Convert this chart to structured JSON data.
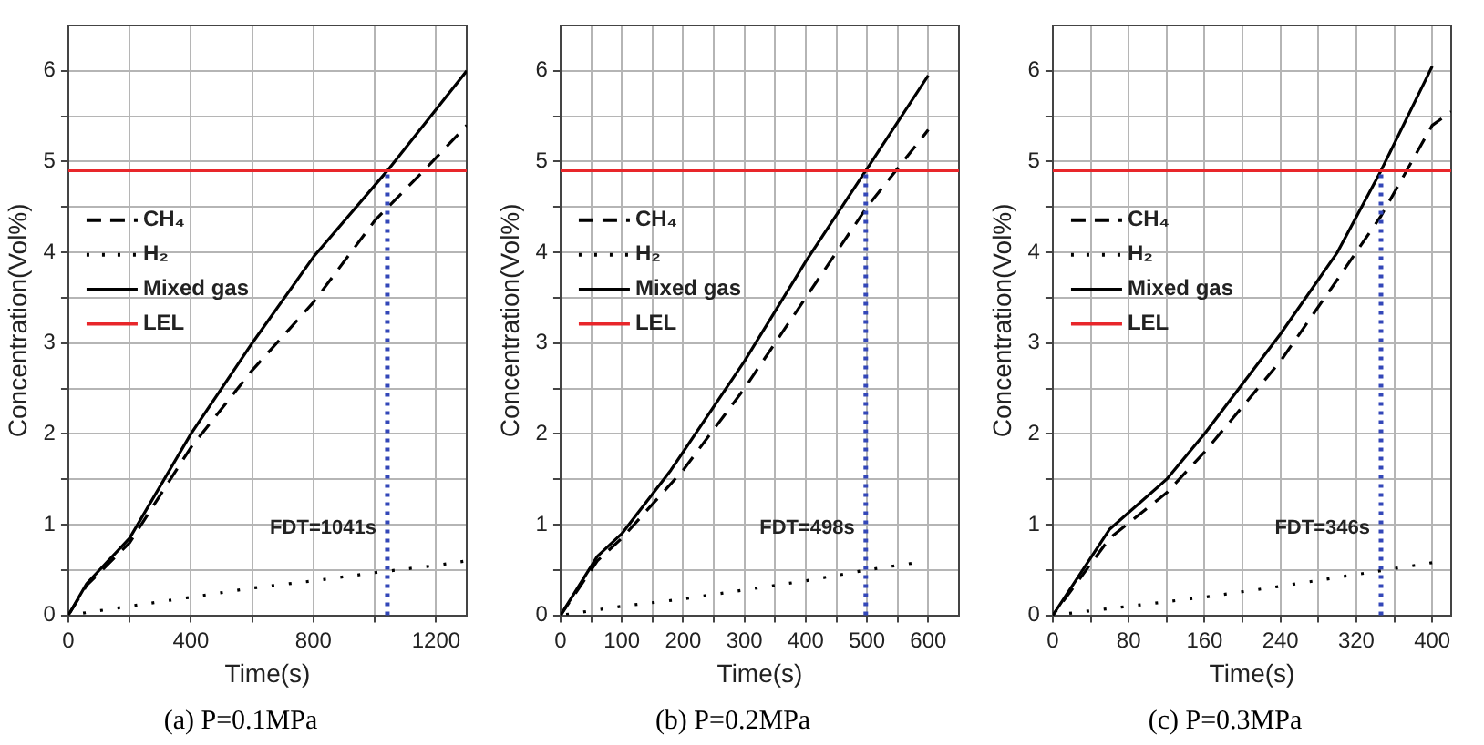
{
  "chart_data": [
    {
      "type": "line",
      "title": "(a) P=0.1MPa",
      "xlabel": "Time(s)",
      "ylabel": "Concentration(Vol%)",
      "xlim": [
        0,
        1300
      ],
      "ylim": [
        0,
        6.5
      ],
      "xticks": [
        0,
        {
          "value": 200,
          "label": null
        },
        400,
        {
          "value": 600,
          "label": null
        },
        800,
        {
          "value": 1000,
          "label": null
        },
        1200
      ],
      "yticks": [
        0,
        {
          "value": 0.5,
          "label": null
        },
        1,
        {
          "value": 1.5,
          "label": null
        },
        2,
        {
          "value": 2.5,
          "label": null
        },
        3,
        {
          "value": 3.5,
          "label": null
        },
        4,
        {
          "value": 4.5,
          "label": null
        },
        5,
        {
          "value": 5.5,
          "label": null
        },
        6
      ],
      "grid": true,
      "legend": "top left",
      "marker": "none",
      "series": [
        {
          "name": "CH₄",
          "color": "#000000",
          "line_style": "dashed",
          "x": [
            0,
            60,
            200,
            400,
            600,
            800,
            1000,
            1160,
            1300
          ],
          "values": [
            0,
            0.33,
            0.8,
            1.85,
            2.7,
            3.45,
            4.35,
            4.9,
            5.4
          ]
        },
        {
          "name": "H₂",
          "color": "#000000",
          "line_style": "dotted",
          "x": [
            0,
            200,
            400,
            600,
            800,
            1000,
            1200,
            1300
          ],
          "values": [
            0,
            0.1,
            0.2,
            0.3,
            0.38,
            0.47,
            0.55,
            0.6
          ]
        },
        {
          "name": "Mixed gas",
          "color": "#000000",
          "line_style": "solid",
          "x": [
            0,
            60,
            200,
            400,
            600,
            800,
            1041,
            1300
          ],
          "values": [
            0,
            0.35,
            0.85,
            2.0,
            3.0,
            3.95,
            4.9,
            6.0
          ]
        }
      ],
      "ref_lines": [
        {
          "axis": "y",
          "value": 4.9,
          "label": "LEL",
          "color": "#e8262a",
          "line_style": "solid"
        },
        {
          "axis": "x",
          "value": 1041,
          "label": "FDT=1041s",
          "color": "#3347b8",
          "line_style": "dotted"
        }
      ]
    },
    {
      "type": "line",
      "title": "(b) P=0.2MPa",
      "xlabel": "Time(s)",
      "ylabel": "Concentration(Vol%)",
      "xlim": [
        0,
        650
      ],
      "ylim": [
        0,
        6.5
      ],
      "xticks": [
        0,
        {
          "value": 50,
          "label": null
        },
        100,
        {
          "value": 150,
          "label": null
        },
        200,
        {
          "value": 250,
          "label": null
        },
        300,
        {
          "value": 350,
          "label": null
        },
        400,
        {
          "value": 450,
          "label": null
        },
        500,
        {
          "value": 550,
          "label": null
        },
        600
      ],
      "yticks": [
        0,
        {
          "value": 0.5,
          "label": null
        },
        1,
        {
          "value": 1.5,
          "label": null
        },
        2,
        {
          "value": 2.5,
          "label": null
        },
        3,
        {
          "value": 3.5,
          "label": null
        },
        4,
        {
          "value": 4.5,
          "label": null
        },
        5,
        {
          "value": 5.5,
          "label": null
        },
        6
      ],
      "grid": true,
      "legend": "top left",
      "marker": "none",
      "series": [
        {
          "name": "CH₄",
          "color": "#000000",
          "line_style": "dashed",
          "x": [
            0,
            60,
            100,
            200,
            300,
            400,
            500,
            600
          ],
          "values": [
            0,
            0.6,
            0.85,
            1.6,
            2.5,
            3.5,
            4.5,
            5.35
          ]
        },
        {
          "name": "H₂",
          "color": "#000000",
          "line_style": "dotted",
          "x": [
            0,
            100,
            200,
            300,
            400,
            500,
            580
          ],
          "values": [
            0,
            0.1,
            0.18,
            0.28,
            0.38,
            0.5,
            0.58
          ]
        },
        {
          "name": "Mixed gas",
          "color": "#000000",
          "line_style": "solid",
          "x": [
            0,
            60,
            100,
            180,
            300,
            400,
            498,
            600
          ],
          "values": [
            0,
            0.65,
            0.9,
            1.6,
            2.8,
            3.9,
            4.9,
            5.95
          ]
        }
      ],
      "ref_lines": [
        {
          "axis": "y",
          "value": 4.9,
          "label": "LEL",
          "color": "#e8262a",
          "line_style": "solid"
        },
        {
          "axis": "x",
          "value": 498,
          "label": "FDT=498s",
          "color": "#3347b8",
          "line_style": "dotted"
        }
      ]
    },
    {
      "type": "line",
      "title": "(c) P=0.3MPa",
      "xlabel": "Time(s)",
      "ylabel": "Concentration(Vol%)",
      "xlim": [
        0,
        420
      ],
      "ylim": [
        0,
        6.5
      ],
      "xticks": [
        0,
        {
          "value": 40,
          "label": null
        },
        80,
        {
          "value": 120,
          "label": null
        },
        160,
        {
          "value": 200,
          "label": null
        },
        240,
        {
          "value": 280,
          "label": null
        },
        320,
        {
          "value": 360,
          "label": null
        },
        400
      ],
      "yticks": [
        0,
        {
          "value": 0.5,
          "label": null
        },
        1,
        {
          "value": 1.5,
          "label": null
        },
        2,
        {
          "value": 2.5,
          "label": null
        },
        3,
        {
          "value": 3.5,
          "label": null
        },
        4,
        {
          "value": 4.5,
          "label": null
        },
        5,
        {
          "value": 5.5,
          "label": null
        },
        6
      ],
      "grid": true,
      "legend": "top left",
      "marker": "none",
      "series": [
        {
          "name": "CH₄",
          "color": "#000000",
          "line_style": "dashed",
          "x": [
            0,
            60,
            120,
            160,
            240,
            300,
            346,
            400,
            420
          ],
          "values": [
            0,
            0.85,
            1.35,
            1.8,
            2.8,
            3.7,
            4.4,
            5.4,
            5.55
          ]
        },
        {
          "name": "H₂",
          "color": "#000000",
          "line_style": "dotted",
          "x": [
            0,
            80,
            160,
            240,
            320,
            400
          ],
          "values": [
            0,
            0.1,
            0.2,
            0.32,
            0.45,
            0.58
          ]
        },
        {
          "name": "Mixed gas",
          "color": "#000000",
          "line_style": "solid",
          "x": [
            0,
            60,
            120,
            160,
            240,
            300,
            346,
            400
          ],
          "values": [
            0,
            0.95,
            1.5,
            2.0,
            3.1,
            4.0,
            4.9,
            6.05
          ]
        }
      ],
      "ref_lines": [
        {
          "axis": "y",
          "value": 4.9,
          "label": "LEL",
          "color": "#e8262a",
          "line_style": "solid"
        },
        {
          "axis": "x",
          "value": 346,
          "label": "FDT=346s",
          "color": "#3347b8",
          "line_style": "dotted"
        }
      ]
    }
  ]
}
